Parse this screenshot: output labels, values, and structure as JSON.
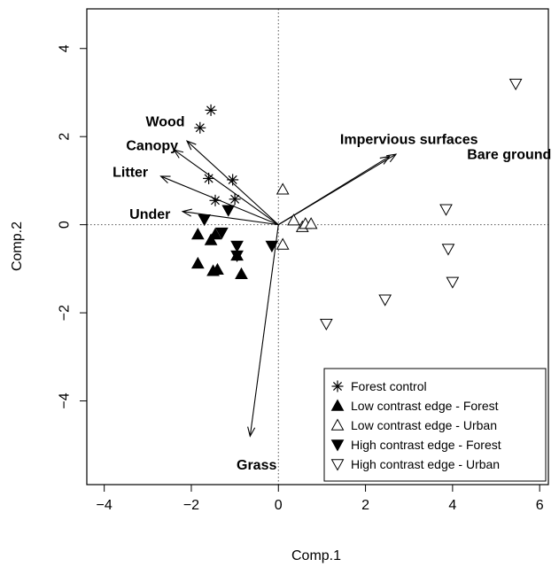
{
  "chart_data": {
    "type": "scatter",
    "title": "",
    "xlabel": "Comp.1",
    "ylabel": "Comp.2",
    "xlim": [
      -4.4,
      6.2
    ],
    "ylim": [
      -5.9,
      4.9
    ],
    "x_ticks": [
      -4,
      -2,
      0,
      2,
      4,
      6
    ],
    "y_ticks": [
      -4,
      -2,
      0,
      2,
      4
    ],
    "x_tick_labels": [
      "−4",
      "−2",
      "0",
      "2",
      "4",
      "6"
    ],
    "y_tick_labels": [
      "−4",
      "−2",
      "0",
      "2",
      "4"
    ],
    "grid": false,
    "reference_lines": {
      "x": 0,
      "y": 0,
      "style": "dotted"
    },
    "legend_position": "bottom-right",
    "series": [
      {
        "name": "Forest control",
        "marker": "asterisk",
        "points": [
          [
            -1.55,
            2.6
          ],
          [
            -1.8,
            2.2
          ],
          [
            -1.6,
            1.05
          ],
          [
            -1.05,
            1.02
          ],
          [
            -1.0,
            0.58
          ],
          [
            -1.45,
            0.55
          ]
        ]
      },
      {
        "name": "Low contrast edge - Forest",
        "marker": "triangle-up-filled",
        "points": [
          [
            -1.85,
            -0.22
          ],
          [
            -1.55,
            -0.35
          ],
          [
            -1.45,
            -0.22
          ],
          [
            -1.85,
            -0.88
          ],
          [
            -1.5,
            -1.05
          ],
          [
            -1.4,
            -1.02
          ],
          [
            -0.95,
            -0.7
          ],
          [
            -0.85,
            -1.12
          ]
        ]
      },
      {
        "name": "Low contrast edge - Urban",
        "marker": "triangle-up-open",
        "points": [
          [
            0.1,
            0.8
          ],
          [
            0.35,
            0.1
          ],
          [
            0.55,
            -0.05
          ],
          [
            0.62,
            0.02
          ],
          [
            0.75,
            0.02
          ],
          [
            0.1,
            -0.45
          ]
        ]
      },
      {
        "name": "High contrast edge - Forest",
        "marker": "triangle-down-filled",
        "points": [
          [
            -1.7,
            0.12
          ],
          [
            -1.3,
            -0.18
          ],
          [
            -1.15,
            0.33
          ],
          [
            -0.95,
            -0.48
          ],
          [
            -0.95,
            -0.7
          ],
          [
            -0.15,
            -0.48
          ]
        ]
      },
      {
        "name": "High contrast edge - Urban",
        "marker": "triangle-down-open",
        "points": [
          [
            5.45,
            3.2
          ],
          [
            3.85,
            0.35
          ],
          [
            3.9,
            -0.55
          ],
          [
            4.0,
            -1.3
          ],
          [
            2.45,
            -1.7
          ],
          [
            1.1,
            -2.25
          ]
        ]
      }
    ],
    "vectors": [
      {
        "label": "Wood",
        "x": -2.1,
        "y": 1.9
      },
      {
        "label": "Canopy",
        "x": -2.4,
        "y": 1.7
      },
      {
        "label": "Litter",
        "x": -2.7,
        "y": 1.1
      },
      {
        "label": "Under",
        "x": -2.2,
        "y": 0.3
      },
      {
        "label": "Impervious surfaces",
        "x": 2.7,
        "y": 1.6
      },
      {
        "label": "Bare ground",
        "x": 2.55,
        "y": 1.55
      },
      {
        "label": "Grass",
        "x": -0.65,
        "y": -4.8
      }
    ],
    "vector_labels": [
      {
        "text": "Wood",
        "x": -2.15,
        "y": 2.35,
        "anchor": "end"
      },
      {
        "text": "Canopy",
        "x": -2.9,
        "y": 1.8,
        "anchor": "middle"
      },
      {
        "text": "Litter",
        "x": -3.4,
        "y": 1.2,
        "anchor": "middle"
      },
      {
        "text": "Under",
        "x": -2.95,
        "y": 0.25,
        "anchor": "middle"
      },
      {
        "text": "Impervious surfaces",
        "x": 3.0,
        "y": 1.95,
        "anchor": "middle"
      },
      {
        "text": "Bare ground",
        "x": 5.3,
        "y": 1.6,
        "anchor": "middle"
      },
      {
        "text": "Grass",
        "x": -0.5,
        "y": -5.45,
        "anchor": "middle"
      }
    ]
  }
}
